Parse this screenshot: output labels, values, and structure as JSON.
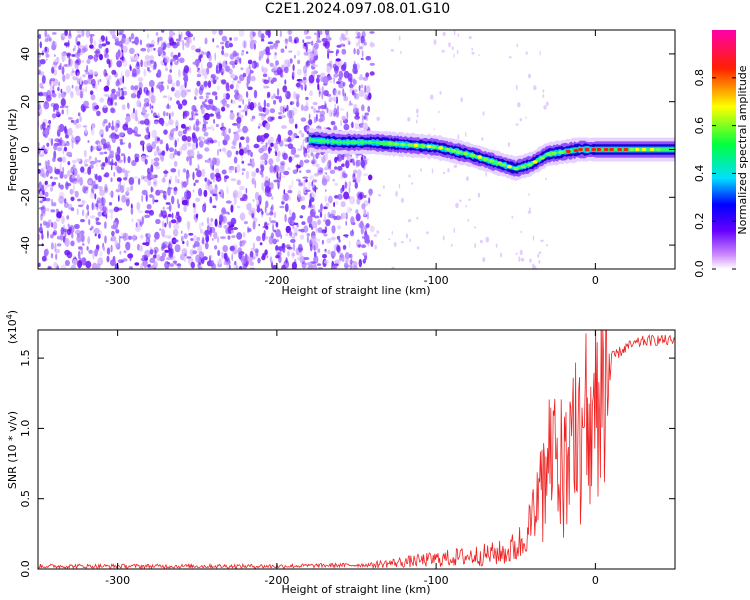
{
  "title": "C2E1.2024.097.08.01.G10",
  "spectrogram": {
    "xlabel": "Height of straight line (km)",
    "ylabel": "Frequency (Hz)",
    "xlim": [
      -350,
      50
    ],
    "ylim": [
      -50,
      50
    ],
    "xticks": [
      -300,
      -200,
      -100,
      0
    ],
    "yticks": [
      -40,
      -20,
      0,
      20,
      40
    ],
    "colorbar": {
      "label": "Normalized spectral amplitude",
      "range": [
        0.0,
        1.0
      ],
      "ticks": [
        "0.0",
        "0.2",
        "0.4",
        "0.6",
        "0.8"
      ],
      "tick_values": [
        0.0,
        0.2,
        0.4,
        0.6,
        0.8
      ]
    }
  },
  "chart_data": [
    {
      "type": "heatmap",
      "xlabel": "Height of straight line (km)",
      "ylabel": "Frequency (Hz)",
      "xlim": [
        -350,
        50
      ],
      "ylim": [
        -50,
        50
      ],
      "ridge": {
        "x": [
          -180,
          -160,
          -140,
          -120,
          -100,
          -80,
          -60,
          -50,
          -40,
          -30,
          -20,
          -10,
          0,
          20,
          50
        ],
        "y": [
          4,
          3,
          3,
          2,
          1,
          -2,
          -6,
          -8,
          -6,
          -2,
          -1,
          0,
          0,
          0,
          0
        ]
      },
      "noise_region_x": [
        -350,
        -140
      ]
    },
    {
      "type": "line",
      "xlabel": "Height of straight line (km)",
      "ylabel": "SNR (10 * v/v)",
      "y_exponent_label": "(x10⁴)",
      "xlim": [
        -350,
        50
      ],
      "ylim": [
        0,
        1.7
      ],
      "xticks": [
        -300,
        -200,
        -100,
        0
      ],
      "yticks": [
        0.0,
        0.5,
        1.0,
        1.5
      ],
      "color": "#ee2222",
      "envelope": {
        "x": [
          -350,
          -200,
          -140,
          -110,
          -90,
          -70,
          -55,
          -45,
          -40,
          -35,
          -30,
          -25,
          -20,
          -15,
          -10,
          -5,
          0,
          10,
          20,
          30,
          40,
          50
        ],
        "y": [
          0.02,
          0.02,
          0.03,
          0.06,
          0.08,
          0.1,
          0.12,
          0.2,
          0.35,
          0.6,
          0.8,
          0.85,
          0.9,
          1.0,
          1.1,
          1.2,
          1.35,
          1.5,
          1.58,
          1.62,
          1.63,
          1.62
        ]
      }
    }
  ],
  "snr_plot": {
    "xlabel": "Height of straight line (km)",
    "ylabel": "SNR (10 * v/v)",
    "exponent": "(x10",
    "exponent_power": "4",
    "exponent_close": ")",
    "xticks": [
      "-300",
      "-200",
      "-100",
      "0"
    ],
    "yticks": [
      "0.0",
      "0.5",
      "1.0",
      "1.5"
    ]
  }
}
